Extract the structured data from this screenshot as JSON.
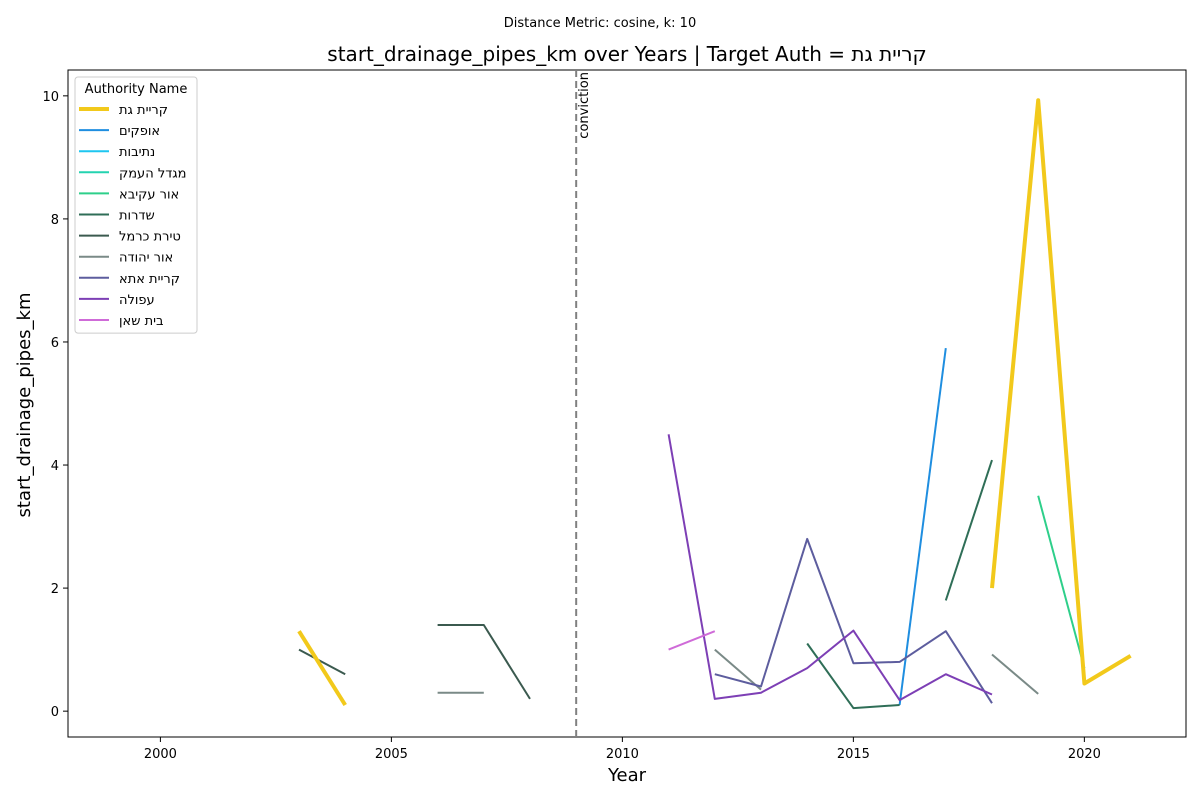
{
  "chart_data": {
    "type": "line",
    "suptitle": "Distance Metric: cosine, k: 10",
    "title": "start_drainage_pipes_km over Years | Target Auth = קריית גת",
    "xlabel": "Year",
    "ylabel": "start_drainage_pipes_km",
    "xlim": [
      1998,
      2022.2
    ],
    "ylim": [
      -0.42,
      10.42
    ],
    "x_ticks": [
      2000,
      2005,
      2010,
      2015,
      2020
    ],
    "y_ticks": [
      0,
      2,
      4,
      6,
      8,
      10
    ],
    "grid": false,
    "legend": {
      "title": "Authority Name",
      "placement": "top-left"
    },
    "vertical_line": {
      "x": 2009,
      "label": "conviction",
      "color": "#808080",
      "style": "dashed"
    },
    "series": [
      {
        "name": "קריית גת",
        "color": "#f2c91b",
        "width": 4,
        "segments": [
          [
            [
              2003,
              1.3
            ],
            [
              2004,
              0.1
            ]
          ],
          [
            [
              2018,
              2.0
            ],
            [
              2019,
              9.93
            ],
            [
              2020,
              0.45
            ],
            [
              2021,
              0.9
            ]
          ]
        ]
      },
      {
        "name": "אופקים",
        "color": "#1f8ee0",
        "width": 2,
        "segments": [
          [
            [
              2016,
              0.1
            ],
            [
              2017,
              5.9
            ]
          ]
        ]
      },
      {
        "name": "נתיבות",
        "color": "#1ec6f0",
        "width": 2,
        "segments": []
      },
      {
        "name": "מגדל העמק",
        "color": "#24d3b0",
        "width": 2,
        "segments": []
      },
      {
        "name": "אור עקיבא",
        "color": "#2ecf8a",
        "width": 2,
        "segments": [
          [
            [
              2019,
              3.5
            ],
            [
              2020,
              0.7
            ]
          ]
        ]
      },
      {
        "name": "שדרות",
        "color": "#2f6e57",
        "width": 2,
        "segments": [
          [
            [
              2014,
              1.1
            ],
            [
              2015,
              0.05
            ],
            [
              2016,
              0.1
            ]
          ],
          [
            [
              2017,
              1.8
            ],
            [
              2018,
              4.08
            ]
          ]
        ]
      },
      {
        "name": "טירת כרמל",
        "color": "#3b5a4f",
        "width": 2,
        "segments": [
          [
            [
              2003,
              1.0
            ],
            [
              2004,
              0.6
            ]
          ],
          [
            [
              2006,
              1.4
            ],
            [
              2007,
              1.4
            ],
            [
              2008,
              0.2
            ]
          ]
        ]
      },
      {
        "name": "אור יהודה",
        "color": "#7a8a87",
        "width": 2,
        "segments": [
          [
            [
              2006,
              0.3
            ],
            [
              2007,
              0.3
            ]
          ],
          [
            [
              2012,
              1.0
            ],
            [
              2013,
              0.35
            ]
          ],
          [
            [
              2018,
              0.92
            ],
            [
              2019,
              0.28
            ]
          ]
        ]
      },
      {
        "name": "קריית אתא",
        "color": "#5d5d9e",
        "width": 2,
        "segments": [
          [
            [
              2012,
              0.6
            ],
            [
              2013,
              0.4
            ],
            [
              2014,
              2.8
            ],
            [
              2015,
              0.78
            ],
            [
              2016,
              0.8
            ],
            [
              2017,
              1.3
            ],
            [
              2018,
              0.13
            ]
          ]
        ]
      },
      {
        "name": "עפולה",
        "color": "#7d3fb5",
        "width": 2,
        "segments": [
          [
            [
              2011,
              4.5
            ],
            [
              2012,
              0.2
            ],
            [
              2013,
              0.3
            ],
            [
              2014,
              0.7
            ],
            [
              2015,
              1.31
            ],
            [
              2016,
              0.18
            ],
            [
              2017,
              0.6
            ],
            [
              2018,
              0.27
            ]
          ]
        ]
      },
      {
        "name": "בית שאן",
        "color": "#cf6bd8",
        "width": 2,
        "segments": [
          [
            [
              2011,
              1.0
            ],
            [
              2012,
              1.3
            ]
          ]
        ]
      }
    ]
  }
}
